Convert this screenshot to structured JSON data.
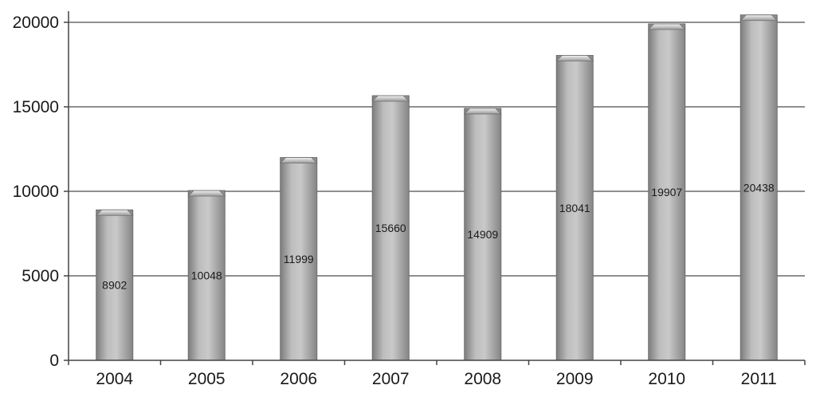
{
  "chart_data": {
    "type": "bar",
    "title": "",
    "xlabel": "",
    "ylabel": "",
    "categories": [
      "2004",
      "2005",
      "2006",
      "2007",
      "2008",
      "2009",
      "2010",
      "2011"
    ],
    "values": [
      8902,
      10048,
      11999,
      15660,
      14909,
      18041,
      19907,
      20438
    ],
    "data_labels": [
      "8902",
      "10048",
      "11999",
      "15660",
      "14909",
      "18041",
      "19907",
      "20438"
    ],
    "ylim": [
      0,
      20000
    ],
    "yticks": [
      0,
      5000,
      10000,
      15000,
      20000
    ],
    "ytick_labels": [
      "0",
      "5000",
      "10000",
      "15000",
      "20000"
    ],
    "grid": true,
    "legend": "none",
    "colors": {
      "bar_light": "#d2d2d2",
      "bar_dark": "#8c8c8c",
      "bar_edge": "#6e6e6e",
      "gridline": "#6a6a6a",
      "axis": "#444444",
      "text": "#1a1a1a"
    }
  }
}
